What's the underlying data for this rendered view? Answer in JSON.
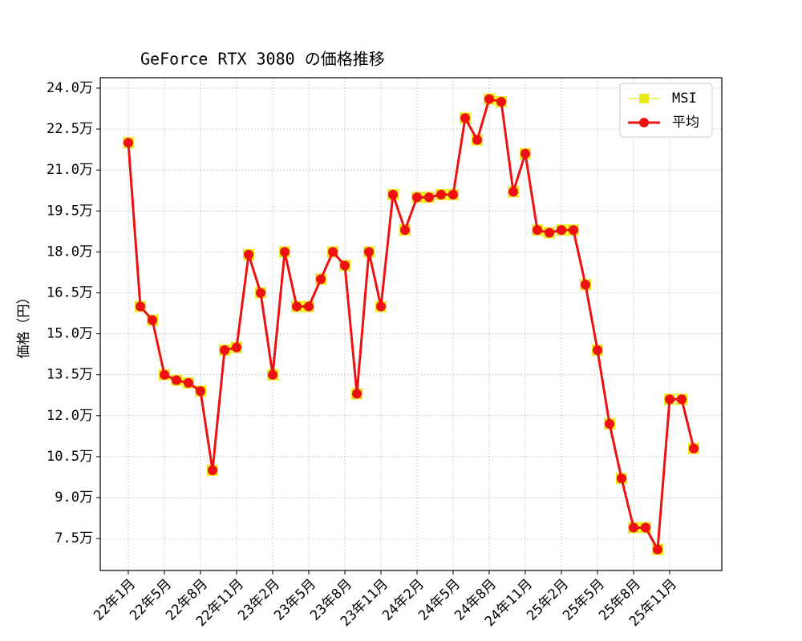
{
  "chart_data": {
    "type": "line",
    "title": "GeForce RTX 3080 の価格推移",
    "ylabel": "価格（円）",
    "categories": [
      "22年1月",
      null,
      null,
      "22年5月",
      null,
      null,
      "22年8月",
      null,
      null,
      "22年11月",
      null,
      null,
      "23年2月",
      null,
      null,
      "23年5月",
      null,
      null,
      "23年8月",
      null,
      null,
      "23年11月",
      null,
      null,
      "24年2月",
      null,
      null,
      "24年5月",
      null,
      null,
      "24年8月",
      null,
      null,
      "24年11月",
      null,
      null,
      "25年2月",
      null,
      null,
      "25年5月",
      null,
      null,
      "25年8月",
      null,
      null,
      "25年11月",
      null,
      null
    ],
    "series": [
      {
        "name": "MSI",
        "color": "#e8e81c",
        "marker": "square",
        "values": [
          22.0,
          16.0,
          15.5,
          13.5,
          13.3,
          13.2,
          12.9,
          10.0,
          14.4,
          14.5,
          17.9,
          16.5,
          13.5,
          18.0,
          16.0,
          16.0,
          17.0,
          18.0,
          17.5,
          12.8,
          18.0,
          16.0,
          20.1,
          18.8,
          20.0,
          20.0,
          20.1,
          20.1,
          22.9,
          22.1,
          23.6,
          23.5,
          20.2,
          21.6,
          18.8,
          18.7,
          18.8,
          18.8,
          16.8,
          14.4,
          11.7,
          9.7,
          7.9,
          7.9,
          7.1,
          12.6,
          12.6,
          10.8
        ]
      },
      {
        "name": "平均",
        "color": "#ee1111",
        "marker": "circle",
        "values": [
          22.0,
          16.0,
          15.5,
          13.5,
          13.3,
          13.2,
          12.9,
          10.0,
          14.4,
          14.5,
          17.9,
          16.5,
          13.5,
          18.0,
          16.0,
          16.0,
          17.0,
          18.0,
          17.5,
          12.8,
          18.0,
          16.0,
          20.1,
          18.8,
          20.0,
          20.0,
          20.1,
          20.1,
          22.9,
          22.1,
          23.6,
          23.5,
          20.2,
          21.6,
          18.8,
          18.7,
          18.8,
          18.8,
          16.8,
          14.4,
          11.7,
          9.7,
          7.9,
          7.9,
          7.1,
          12.6,
          12.6,
          10.8
        ]
      }
    ],
    "ylim": [
      6.33,
      24.38
    ],
    "yticks": [
      {
        "value": 7.5,
        "label": "7.5万"
      },
      {
        "value": 9,
        "label": "9.0万"
      },
      {
        "value": 10.5,
        "label": "10.5万"
      },
      {
        "value": 12,
        "label": "12.0万"
      },
      {
        "value": 13.5,
        "label": "13.5万"
      },
      {
        "value": 15,
        "label": "15.0万"
      },
      {
        "value": 16.5,
        "label": "16.5万"
      },
      {
        "value": 18,
        "label": "18.0万"
      },
      {
        "value": 19.5,
        "label": "19.5万"
      },
      {
        "value": 21,
        "label": "21.0万"
      },
      {
        "value": 22.5,
        "label": "22.5万"
      },
      {
        "value": 24,
        "label": "24.0万"
      }
    ],
    "grid": true,
    "legend": "upper right"
  }
}
